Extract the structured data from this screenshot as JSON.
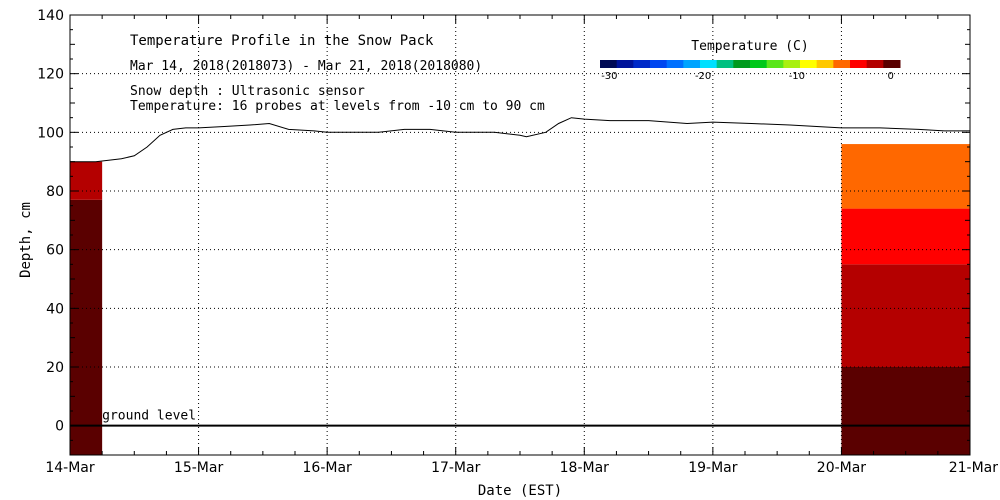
{
  "chart_data": {
    "type": "area",
    "title": "Temperature Profile in the Snow Pack",
    "subtitle": "Mar 14, 2018(2018073) - Mar 21, 2018(2018080)",
    "notes": [
      "Snow depth : Ultrasonic sensor",
      "Temperature: 16 probes at levels from -10 cm to 90 cm"
    ],
    "ground_label": "ground level",
    "xlabel": "Date (EST)",
    "ylabel": "Depth, cm",
    "x_ticks": [
      "14-Mar",
      "15-Mar",
      "16-Mar",
      "17-Mar",
      "18-Mar",
      "19-Mar",
      "20-Mar",
      "21-Mar"
    ],
    "xlim": [
      0,
      7
    ],
    "ylim": [
      -10,
      140
    ],
    "y_ticks": [
      0,
      20,
      40,
      60,
      80,
      100,
      120,
      140
    ],
    "grid": true,
    "colorbar": {
      "title": "Temperature (C)",
      "tick_labels": [
        "-30",
        "-20",
        "-10",
        "0"
      ],
      "tick_values": [
        -30,
        -20,
        -10,
        0
      ],
      "range": [
        -31,
        1
      ],
      "colors": [
        "#000a55",
        "#00139a",
        "#0029c8",
        "#0046f0",
        "#0070ff",
        "#00a4ff",
        "#00e0ff",
        "#00c080",
        "#009a1e",
        "#00c81a",
        "#5ae61a",
        "#a8f010",
        "#ffff00",
        "#ffc800",
        "#ff6800",
        "#ff0000",
        "#b40000",
        "#5a0000"
      ]
    },
    "snow_depth": {
      "x": [
        0,
        0.1,
        0.2,
        0.3,
        0.4,
        0.5,
        0.6,
        0.7,
        0.8,
        0.9,
        1.0,
        1.2,
        1.4,
        1.55,
        1.7,
        1.9,
        2.0,
        2.2,
        2.4,
        2.6,
        2.8,
        3.0,
        3.3,
        3.5,
        3.55,
        3.7,
        3.8,
        3.9,
        4.0,
        4.2,
        4.5,
        4.8,
        5.0,
        5.3,
        5.6,
        6.0,
        6.3,
        6.6,
        6.8,
        7.0
      ],
      "y": [
        90,
        90,
        90,
        90.5,
        91,
        92,
        95,
        99,
        101,
        101.5,
        101.5,
        102,
        102.5,
        103,
        101,
        100.5,
        100,
        100,
        100,
        101,
        101,
        100,
        100,
        99,
        98.5,
        100,
        103,
        105,
        104.5,
        104,
        104,
        103,
        103.5,
        103,
        102.5,
        101.5,
        101.5,
        101,
        100.5,
        100.5
      ]
    },
    "temperature_bands": [
      {
        "x_range": [
          0,
          0.25
        ],
        "layers": [
          {
            "from": -10,
            "to": 77,
            "temp": -0.5
          },
          {
            "from": 77,
            "to": 90,
            "temp": -1.5
          }
        ]
      },
      {
        "x_range": [
          6.0,
          7.0
        ],
        "layers": [
          {
            "from": -10,
            "to": 20,
            "temp": -0.5
          },
          {
            "from": 20,
            "to": 35,
            "temp": -1.5
          },
          {
            "from": 35,
            "to": 55,
            "temp": -2.5
          },
          {
            "from": 55,
            "to": 74,
            "temp": -3.5
          },
          {
            "from": 74,
            "to": 96,
            "temp": -5
          }
        ]
      }
    ]
  }
}
